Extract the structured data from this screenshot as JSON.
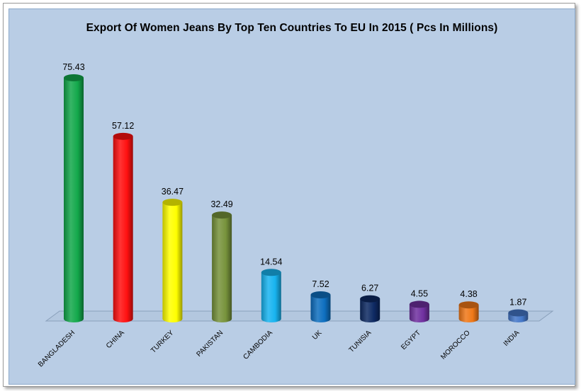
{
  "chart_data": {
    "type": "bar",
    "title": "Export  Of Women Jeans By Top Ten Countries To EU In 2015 ( Pcs In Millions)",
    "categories": [
      "BANGLADESH",
      "CHINA",
      "TURKEY",
      "PAKISTAN",
      "CAMBODIA",
      "UK",
      "TUNISIA",
      "EGYPT",
      "MOROCCO",
      "INDIA"
    ],
    "values": [
      75.43,
      57.12,
      36.47,
      32.49,
      14.54,
      7.52,
      6.27,
      4.55,
      4.38,
      1.87
    ],
    "value_labels": [
      "75.43",
      "57.12",
      "36.47",
      "32.49",
      "14.54",
      "7.52",
      "6.27",
      "4.55",
      "4.38",
      "1.87"
    ],
    "colors": [
      "#13a84b",
      "#ff1010",
      "#ffff00",
      "#77933c",
      "#18b4f0",
      "#0e6fc0",
      "#0e2a63",
      "#7030a0",
      "#f07818",
      "#4477c8"
    ],
    "xlabel": "",
    "ylabel": "",
    "style": "3d-cylinder",
    "legend": "none",
    "grid": false
  }
}
